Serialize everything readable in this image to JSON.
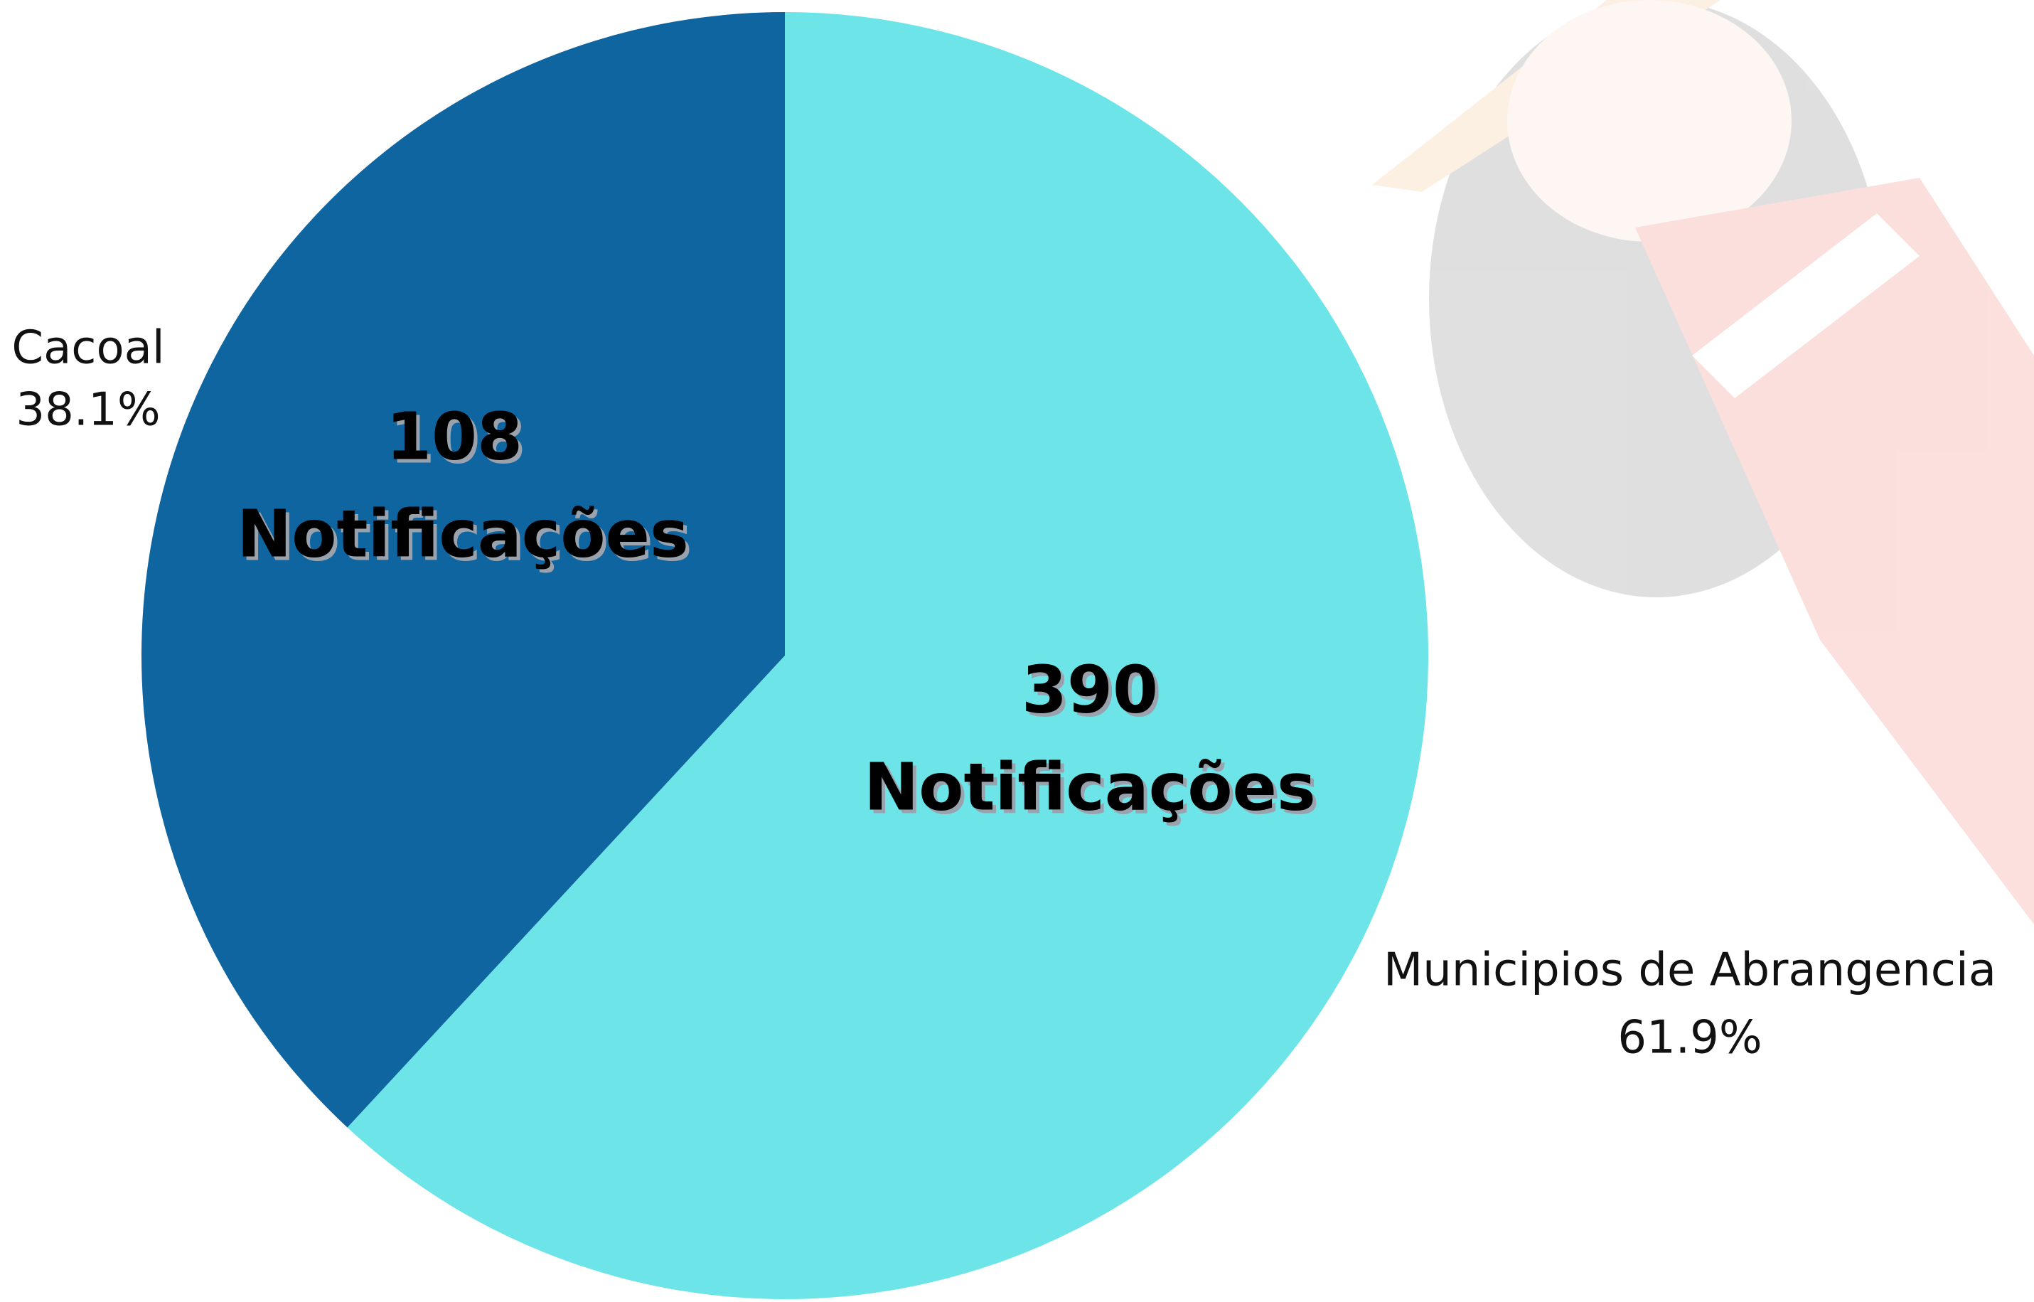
{
  "chart_data": {
    "type": "pie",
    "categories": [
      "Cacoal",
      "Municipios de Abrangencia"
    ],
    "values": [
      38.1,
      61.9
    ],
    "value_labels": [
      "38.1%",
      "61.9%"
    ],
    "colors": [
      "#0f65a0",
      "#6ce4e8"
    ],
    "annotations": [
      {
        "count": 108,
        "text": "Notificações"
      },
      {
        "count": 390,
        "text": "Notificações"
      }
    ]
  }
}
